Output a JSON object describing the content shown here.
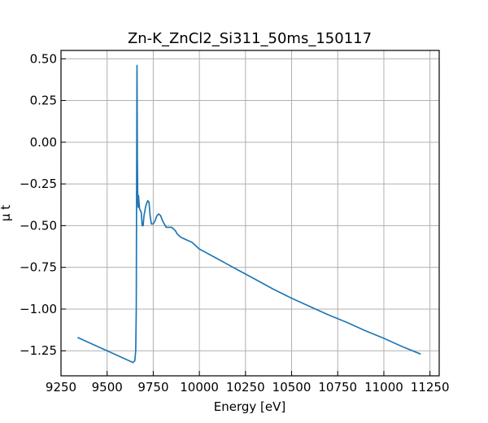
{
  "chart_data": {
    "type": "line",
    "title": "Zn-K_ZnCl2_Si311_50ms_150117",
    "xlabel": "Energy [eV]",
    "ylabel": "μ t",
    "xlim": [
      9250,
      11300
    ],
    "ylim": [
      -1.4,
      0.55
    ],
    "grid": true,
    "xticks": [
      9250,
      9500,
      9750,
      10000,
      10250,
      10500,
      10750,
      11000,
      11250
    ],
    "xtick_labels": [
      "9250",
      "9500",
      "9750",
      "10000",
      "10250",
      "10500",
      "10750",
      "11000",
      "11250"
    ],
    "yticks": [
      0.5,
      0.25,
      0.0,
      -0.25,
      -0.5,
      -0.75,
      -1.0,
      -1.25
    ],
    "ytick_labels": [
      "0.50",
      "0.25",
      "0.00",
      "−0.25",
      "−0.50",
      "−0.75",
      "−1.00",
      "−1.25"
    ],
    "series": [
      {
        "color": "#1f77b4",
        "x": [
          9340,
          9400,
          9450,
          9500,
          9550,
          9600,
          9640,
          9650,
          9655,
          9658,
          9660,
          9662,
          9664,
          9666,
          9668,
          9670,
          9673,
          9676,
          9680,
          9685,
          9690,
          9695,
          9700,
          9710,
          9720,
          9727,
          9733,
          9740,
          9750,
          9760,
          9770,
          9780,
          9790,
          9800,
          9810,
          9820,
          9830,
          9840,
          9850,
          9860,
          9870,
          9880,
          9900,
          9920,
          9940,
          9960,
          9980,
          10000,
          10050,
          10100,
          10150,
          10200,
          10250,
          10300,
          10400,
          10500,
          10600,
          10700,
          10800,
          10900,
          11000,
          11100,
          11200
        ],
        "y": [
          -1.17,
          -1.2,
          -1.225,
          -1.25,
          -1.275,
          -1.3,
          -1.32,
          -1.31,
          -1.25,
          -1.0,
          -0.2,
          0.46,
          -0.1,
          -0.33,
          -0.39,
          -0.32,
          -0.36,
          -0.4,
          -0.41,
          -0.42,
          -0.5,
          -0.5,
          -0.44,
          -0.38,
          -0.35,
          -0.36,
          -0.44,
          -0.49,
          -0.49,
          -0.47,
          -0.44,
          -0.43,
          -0.44,
          -0.47,
          -0.49,
          -0.51,
          -0.51,
          -0.51,
          -0.51,
          -0.52,
          -0.53,
          -0.55,
          -0.57,
          -0.58,
          -0.59,
          -0.6,
          -0.62,
          -0.64,
          -0.67,
          -0.7,
          -0.73,
          -0.76,
          -0.79,
          -0.82,
          -0.88,
          -0.935,
          -0.985,
          -1.035,
          -1.08,
          -1.13,
          -1.175,
          -1.225,
          -1.27
        ]
      }
    ]
  }
}
